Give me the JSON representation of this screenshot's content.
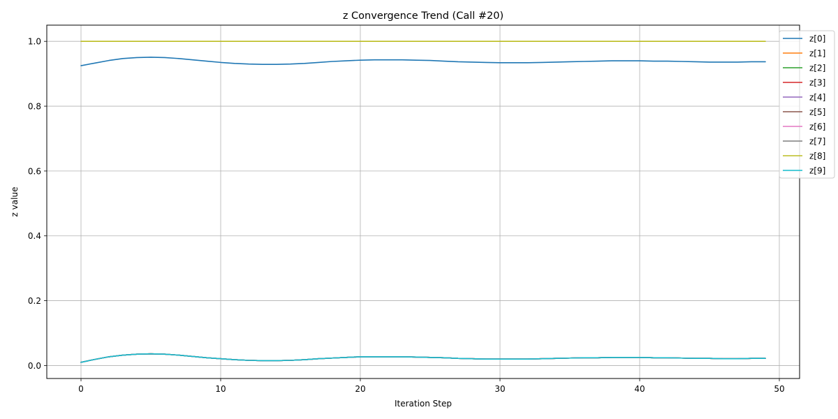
{
  "chart_data": {
    "type": "line",
    "title": "z Convergence Trend (Call #20)",
    "xlabel": "Iteration Step",
    "ylabel": "z value",
    "xlim": [
      -2.45,
      51.45
    ],
    "ylim": [
      -0.04,
      1.05
    ],
    "xticks": [
      0,
      10,
      20,
      30,
      40,
      50
    ],
    "yticks": [
      0.0,
      0.2,
      0.4,
      0.6,
      0.8,
      1.0
    ],
    "xtick_labels": [
      "0",
      "10",
      "20",
      "30",
      "40",
      "50"
    ],
    "ytick_labels": [
      "0.0",
      "0.2",
      "0.4",
      "0.6",
      "0.8",
      "1.0"
    ],
    "grid": true,
    "legend_position": "top-right, outside",
    "x": [
      0,
      1,
      2,
      3,
      4,
      5,
      6,
      7,
      8,
      9,
      10,
      11,
      12,
      13,
      14,
      15,
      16,
      17,
      18,
      19,
      20,
      21,
      22,
      23,
      24,
      25,
      26,
      27,
      28,
      29,
      30,
      31,
      32,
      33,
      34,
      35,
      36,
      37,
      38,
      39,
      40,
      41,
      42,
      43,
      44,
      45,
      46,
      47,
      48,
      49
    ],
    "series": [
      {
        "name": "z[0]",
        "color": "#1f77b4",
        "values": [
          0.925,
          0.933,
          0.941,
          0.947,
          0.95,
          0.951,
          0.95,
          0.947,
          0.943,
          0.939,
          0.935,
          0.932,
          0.93,
          0.929,
          0.929,
          0.93,
          0.932,
          0.935,
          0.938,
          0.94,
          0.942,
          0.943,
          0.943,
          0.943,
          0.942,
          0.941,
          0.939,
          0.937,
          0.936,
          0.935,
          0.934,
          0.934,
          0.934,
          0.935,
          0.936,
          0.937,
          0.938,
          0.939,
          0.94,
          0.94,
          0.94,
          0.939,
          0.939,
          0.938,
          0.937,
          0.936,
          0.936,
          0.936,
          0.937,
          0.937
        ]
      },
      {
        "name": "z[1]",
        "color": "#ff7f0e",
        "values": [
          0.01,
          0.019,
          0.027,
          0.032,
          0.035,
          0.036,
          0.035,
          0.032,
          0.028,
          0.024,
          0.021,
          0.018,
          0.016,
          0.015,
          0.015,
          0.016,
          0.018,
          0.021,
          0.023,
          0.025,
          0.027,
          0.027,
          0.027,
          0.027,
          0.026,
          0.025,
          0.024,
          0.022,
          0.021,
          0.02,
          0.02,
          0.02,
          0.02,
          0.021,
          0.022,
          0.023,
          0.024,
          0.024,
          0.025,
          0.025,
          0.025,
          0.024,
          0.024,
          0.023,
          0.022,
          0.022,
          0.021,
          0.021,
          0.022,
          0.022
        ]
      },
      {
        "name": "z[2]",
        "color": "#2ca02c",
        "values": [
          0.01,
          0.019,
          0.027,
          0.032,
          0.035,
          0.036,
          0.035,
          0.032,
          0.028,
          0.024,
          0.021,
          0.018,
          0.016,
          0.015,
          0.015,
          0.016,
          0.018,
          0.021,
          0.023,
          0.025,
          0.027,
          0.027,
          0.027,
          0.027,
          0.026,
          0.025,
          0.024,
          0.022,
          0.021,
          0.02,
          0.02,
          0.02,
          0.02,
          0.021,
          0.022,
          0.023,
          0.024,
          0.024,
          0.025,
          0.025,
          0.025,
          0.024,
          0.024,
          0.023,
          0.022,
          0.022,
          0.021,
          0.021,
          0.022,
          0.022
        ]
      },
      {
        "name": "z[3]",
        "color": "#d62728",
        "values": [
          0.01,
          0.019,
          0.027,
          0.032,
          0.035,
          0.036,
          0.035,
          0.032,
          0.028,
          0.024,
          0.021,
          0.018,
          0.016,
          0.015,
          0.015,
          0.016,
          0.018,
          0.021,
          0.023,
          0.025,
          0.027,
          0.027,
          0.027,
          0.027,
          0.026,
          0.025,
          0.024,
          0.022,
          0.021,
          0.02,
          0.02,
          0.02,
          0.02,
          0.021,
          0.022,
          0.023,
          0.024,
          0.024,
          0.025,
          0.025,
          0.025,
          0.024,
          0.024,
          0.023,
          0.022,
          0.022,
          0.021,
          0.021,
          0.022,
          0.022
        ]
      },
      {
        "name": "z[4]",
        "color": "#9467bd",
        "values": [
          0.01,
          0.019,
          0.027,
          0.032,
          0.035,
          0.036,
          0.035,
          0.032,
          0.028,
          0.024,
          0.021,
          0.018,
          0.016,
          0.015,
          0.015,
          0.016,
          0.018,
          0.021,
          0.023,
          0.025,
          0.027,
          0.027,
          0.027,
          0.027,
          0.026,
          0.025,
          0.024,
          0.022,
          0.021,
          0.02,
          0.02,
          0.02,
          0.02,
          0.021,
          0.022,
          0.023,
          0.024,
          0.024,
          0.025,
          0.025,
          0.025,
          0.024,
          0.024,
          0.023,
          0.022,
          0.022,
          0.021,
          0.021,
          0.022,
          0.022
        ]
      },
      {
        "name": "z[5]",
        "color": "#8c564b",
        "values": [
          0.01,
          0.019,
          0.027,
          0.032,
          0.035,
          0.036,
          0.035,
          0.032,
          0.028,
          0.024,
          0.021,
          0.018,
          0.016,
          0.015,
          0.015,
          0.016,
          0.018,
          0.021,
          0.023,
          0.025,
          0.027,
          0.027,
          0.027,
          0.027,
          0.026,
          0.025,
          0.024,
          0.022,
          0.021,
          0.02,
          0.02,
          0.02,
          0.02,
          0.021,
          0.022,
          0.023,
          0.024,
          0.024,
          0.025,
          0.025,
          0.025,
          0.024,
          0.024,
          0.023,
          0.022,
          0.022,
          0.021,
          0.021,
          0.022,
          0.022
        ]
      },
      {
        "name": "z[6]",
        "color": "#e377c2",
        "values": [
          0.01,
          0.019,
          0.027,
          0.032,
          0.035,
          0.036,
          0.035,
          0.032,
          0.028,
          0.024,
          0.021,
          0.018,
          0.016,
          0.015,
          0.015,
          0.016,
          0.018,
          0.021,
          0.023,
          0.025,
          0.027,
          0.027,
          0.027,
          0.027,
          0.026,
          0.025,
          0.024,
          0.022,
          0.021,
          0.02,
          0.02,
          0.02,
          0.02,
          0.021,
          0.022,
          0.023,
          0.024,
          0.024,
          0.025,
          0.025,
          0.025,
          0.024,
          0.024,
          0.023,
          0.022,
          0.022,
          0.021,
          0.021,
          0.022,
          0.022
        ]
      },
      {
        "name": "z[7]",
        "color": "#7f7f7f",
        "values": [
          0.01,
          0.019,
          0.027,
          0.032,
          0.035,
          0.036,
          0.035,
          0.032,
          0.028,
          0.024,
          0.021,
          0.018,
          0.016,
          0.015,
          0.015,
          0.016,
          0.018,
          0.021,
          0.023,
          0.025,
          0.027,
          0.027,
          0.027,
          0.027,
          0.026,
          0.025,
          0.024,
          0.022,
          0.021,
          0.02,
          0.02,
          0.02,
          0.02,
          0.021,
          0.022,
          0.023,
          0.024,
          0.024,
          0.025,
          0.025,
          0.025,
          0.024,
          0.024,
          0.023,
          0.022,
          0.022,
          0.021,
          0.021,
          0.022,
          0.022
        ]
      },
      {
        "name": "z[8]",
        "color": "#bcbd22",
        "values": [
          1,
          1,
          1,
          1,
          1,
          1,
          1,
          1,
          1,
          1,
          1,
          1,
          1,
          1,
          1,
          1,
          1,
          1,
          1,
          1,
          1,
          1,
          1,
          1,
          1,
          1,
          1,
          1,
          1,
          1,
          1,
          1,
          1,
          1,
          1,
          1,
          1,
          1,
          1,
          1,
          1,
          1,
          1,
          1,
          1,
          1,
          1,
          1,
          1,
          1
        ]
      },
      {
        "name": "z[9]",
        "color": "#17becf",
        "values": [
          0.01,
          0.019,
          0.027,
          0.032,
          0.035,
          0.036,
          0.035,
          0.032,
          0.028,
          0.024,
          0.021,
          0.018,
          0.016,
          0.015,
          0.015,
          0.016,
          0.018,
          0.021,
          0.023,
          0.025,
          0.027,
          0.027,
          0.027,
          0.027,
          0.026,
          0.025,
          0.024,
          0.022,
          0.021,
          0.02,
          0.02,
          0.02,
          0.02,
          0.021,
          0.022,
          0.023,
          0.024,
          0.024,
          0.025,
          0.025,
          0.025,
          0.024,
          0.024,
          0.023,
          0.022,
          0.022,
          0.021,
          0.021,
          0.022,
          0.022
        ]
      }
    ]
  }
}
